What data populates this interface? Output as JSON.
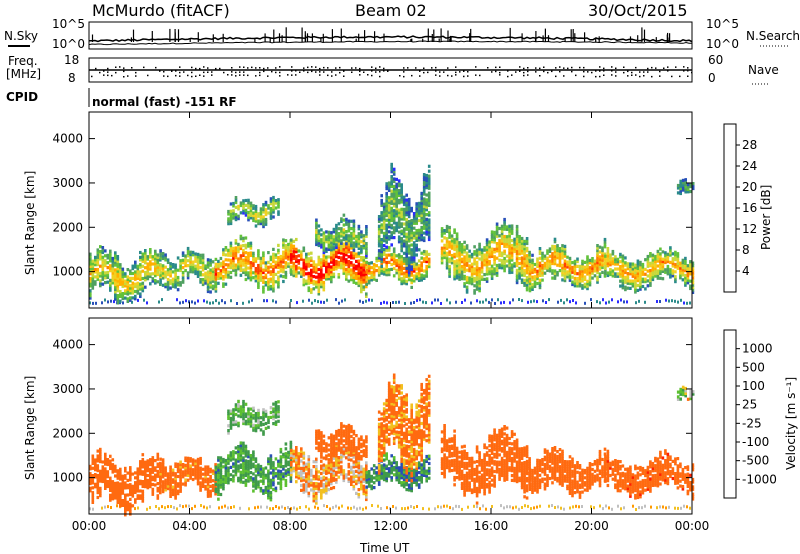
{
  "header": {
    "station": "McMurdo (fitACF)",
    "beam": "Beam 02",
    "date": "30/Oct/2015"
  },
  "strips": {
    "nsky_label": "N.Sky",
    "nsearch_label": "N.Search",
    "noise_ticks_left": [
      "10^5",
      "10^0"
    ],
    "noise_ticks_right": [
      "10^5",
      "10^0"
    ],
    "freq_label": "Freq.",
    "freq_unit": "[MHz]",
    "freq_ticks": [
      "18",
      "8"
    ],
    "nave_label": "Nave",
    "nave_ticks": [
      "60",
      "0"
    ],
    "cpid_label": "CPID",
    "cpid_text": "normal (fast) -151 RF"
  },
  "chart_data": [
    {
      "type": "heatmap",
      "panel": "power",
      "ylabel": "Slant Range [km]",
      "xlabel": "",
      "x_ticks": [
        "00:00",
        "04:00",
        "08:00",
        "12:00",
        "16:00",
        "20:00",
        "00:00"
      ],
      "y_ticks": [
        "1000",
        "2000",
        "3000",
        "4000"
      ],
      "xlim_hours": [
        0,
        24
      ],
      "ylim_km": [
        180,
        4600
      ],
      "colorbar": {
        "label": "Power [dB]",
        "ticks": [
          "28",
          "24",
          "20",
          "16",
          "12",
          "8",
          "4"
        ],
        "colors": [
          "#2b2bff",
          "#2850b8",
          "#2a8a8a",
          "#4fa060",
          "#62c23a",
          "#c8d83a",
          "#f2d020",
          "#ffb000",
          "#ff8000",
          "#ff4000",
          "#ff0000"
        ]
      },
      "echo_regions": [
        {
          "t0": 0.0,
          "t1": 2.8,
          "r0": 400,
          "r1": 1500,
          "level": 0.55
        },
        {
          "t0": 2.8,
          "t1": 5.0,
          "r0": 700,
          "r1": 1500,
          "level": 0.5
        },
        {
          "t0": 5.0,
          "t1": 8.0,
          "r0": 700,
          "r1": 1700,
          "level": 0.7
        },
        {
          "t0": 8.0,
          "t1": 11.0,
          "r0": 650,
          "r1": 1700,
          "level": 0.85
        },
        {
          "t0": 11.0,
          "t1": 13.5,
          "r0": 800,
          "r1": 1500,
          "level": 0.7
        },
        {
          "t0": 5.5,
          "t1": 7.5,
          "r0": 2100,
          "r1": 2700,
          "level": 0.45
        },
        {
          "t0": 9.0,
          "t1": 11.0,
          "r0": 1500,
          "r1": 2200,
          "level": 0.4
        },
        {
          "t0": 11.5,
          "t1": 13.5,
          "r0": 1200,
          "r1": 3200,
          "level": 0.35
        },
        {
          "t0": 14.0,
          "t1": 17.5,
          "r0": 700,
          "r1": 2000,
          "level": 0.6
        },
        {
          "t0": 17.5,
          "t1": 20.5,
          "r0": 700,
          "r1": 1600,
          "level": 0.65
        },
        {
          "t0": 20.5,
          "t1": 24.0,
          "r0": 700,
          "r1": 1500,
          "level": 0.6
        },
        {
          "t0": 23.4,
          "t1": 24.0,
          "r0": 2800,
          "r1": 3100,
          "level": 0.3
        }
      ]
    },
    {
      "type": "heatmap",
      "panel": "velocity",
      "ylabel": "Slant Range [km]",
      "xlabel": "Time UT",
      "x_ticks": [
        "00:00",
        "04:00",
        "08:00",
        "12:00",
        "16:00",
        "20:00",
        "00:00"
      ],
      "y_ticks": [
        "1000",
        "2000",
        "3000",
        "4000"
      ],
      "xlim_hours": [
        0,
        24
      ],
      "ylim_km": [
        180,
        4600
      ],
      "colorbar": {
        "label": "Velocity [m s⁻¹]",
        "ticks": [
          "1000",
          "500",
          "100",
          "25",
          "-25",
          "-100",
          "-500",
          "-1000"
        ],
        "colors": [
          "#2030d0",
          "#2a4fb5",
          "#2e7a70",
          "#3f9a4a",
          "#5cc030",
          "#c0c0c0",
          "#f2c020",
          "#ff9a00",
          "#ff6a10",
          "#ff2000"
        ]
      },
      "echo_regions": [
        {
          "t0": 0.0,
          "t1": 2.8,
          "r0": 400,
          "r1": 1500,
          "v": -300
        },
        {
          "t0": 2.8,
          "t1": 5.0,
          "r0": 700,
          "r1": 1500,
          "v": -200
        },
        {
          "t0": 5.0,
          "t1": 8.0,
          "r0": 700,
          "r1": 1700,
          "v": 150
        },
        {
          "t0": 8.0,
          "t1": 11.0,
          "r0": 650,
          "r1": 1700,
          "v": -100
        },
        {
          "t0": 11.0,
          "t1": 13.5,
          "r0": 800,
          "r1": 1500,
          "v": 200
        },
        {
          "t0": 5.5,
          "t1": 7.5,
          "r0": 2100,
          "r1": 2700,
          "v": 120
        },
        {
          "t0": 9.0,
          "t1": 11.0,
          "r0": 1500,
          "r1": 2200,
          "v": -250
        },
        {
          "t0": 11.5,
          "t1": 13.5,
          "r0": 1200,
          "r1": 3200,
          "v": -150
        },
        {
          "t0": 14.0,
          "t1": 17.5,
          "r0": 700,
          "r1": 2000,
          "v": -350
        },
        {
          "t0": 17.5,
          "t1": 20.5,
          "r0": 700,
          "r1": 1600,
          "v": -300
        },
        {
          "t0": 20.5,
          "t1": 24.0,
          "r0": 700,
          "r1": 1500,
          "v": -400
        },
        {
          "t0": 23.4,
          "t1": 24.0,
          "r0": 2800,
          "r1": 3100,
          "v": 10
        }
      ]
    }
  ]
}
